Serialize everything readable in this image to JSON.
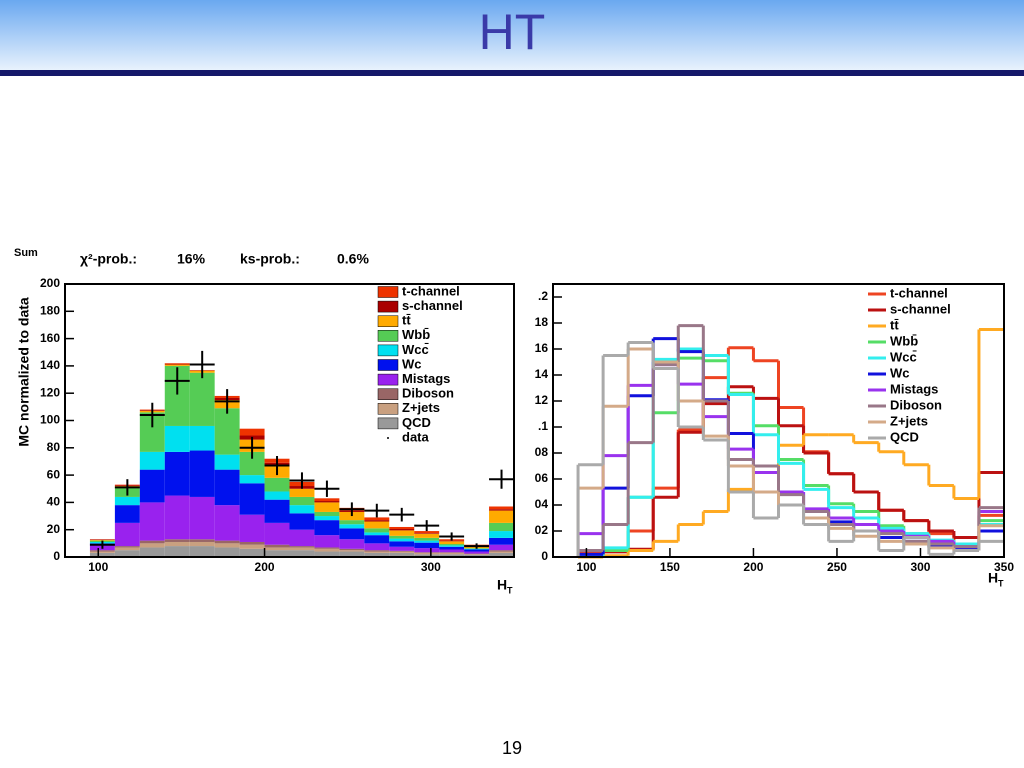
{
  "title": "HT",
  "page_number": "19",
  "chart_data": [
    {
      "type": "stacked_histogram",
      "corner_label": "Sum",
      "chi2_label": "χ²-prob.:",
      "chi2_value": "16%",
      "ks_label": "ks-prob.:",
      "ks_value": "0.6%",
      "y_label": "MC normalized to data",
      "x_label": "H",
      "x_label_sub": "T",
      "bins": [
        95,
        110,
        125,
        140,
        155,
        170,
        185,
        200,
        215,
        230,
        245,
        260,
        275,
        290,
        305,
        320,
        335,
        350
      ],
      "series": [
        {
          "name": "t-channel",
          "color": "#ee3300",
          "values": [
            0.2,
            0.5,
            0.5,
            0.5,
            0.2,
            1.5,
            5,
            3,
            3,
            2,
            2,
            2,
            1.5,
            1.5,
            1,
            0.7,
            2
          ]
        },
        {
          "name": "s-channel",
          "color": "#aa0000",
          "values": [
            0.3,
            0.5,
            0.5,
            0.5,
            0.3,
            1.5,
            3,
            2,
            2,
            1,
            1,
            1,
            1,
            0.5,
            0.5,
            0.3,
            1
          ]
        },
        {
          "name": "tt̄",
          "color": "#ffaa00",
          "values": [
            0.5,
            1,
            1,
            1,
            1.5,
            6,
            9,
            9,
            6,
            7,
            6,
            5,
            4,
            3,
            2,
            1.5,
            9
          ]
        },
        {
          "name": "Wbb̄",
          "color": "#55cc55",
          "values": [
            1,
            7,
            29,
            44,
            39,
            34,
            17,
            10,
            6,
            3,
            3,
            3,
            2,
            2,
            1,
            0.5,
            6
          ]
        },
        {
          "name": "Wcc̄",
          "color": "#00e0f0",
          "values": [
            1,
            6,
            13,
            19,
            18,
            11,
            6,
            6,
            6,
            3,
            3,
            2,
            2,
            1.5,
            1,
            0.5,
            5
          ]
        },
        {
          "name": "Wc",
          "color": "#0011ee",
          "values": [
            1,
            13,
            24,
            32,
            34,
            26,
            23,
            17,
            12,
            11,
            8,
            6,
            4,
            4,
            2,
            1.5,
            5
          ]
        },
        {
          "name": "Mistags",
          "color": "#9922ee",
          "values": [
            4,
            17,
            28,
            32,
            31,
            26,
            20,
            16,
            12,
            9,
            7,
            5,
            3,
            3,
            2,
            1.5,
            4
          ]
        },
        {
          "name": "Diboson",
          "color": "#996666",
          "values": [
            1,
            1,
            2,
            2,
            2,
            2,
            2,
            2,
            1,
            1,
            1,
            1,
            0.5,
            0.5,
            0.5,
            0.5,
            1
          ]
        },
        {
          "name": "Z+jets",
          "color": "#c9a080",
          "values": [
            1,
            2,
            3,
            3,
            3,
            3,
            3,
            2,
            2,
            2,
            1,
            1,
            1,
            1,
            1,
            0.5,
            1
          ]
        },
        {
          "name": "QCD",
          "color": "#999999",
          "values": [
            3,
            5,
            7,
            8,
            8,
            7,
            6,
            5,
            5,
            4,
            4,
            3,
            3,
            2,
            2,
            1.5,
            3
          ]
        }
      ],
      "data": {
        "name": "data",
        "color": "#000000",
        "values": [
          9,
          51,
          104,
          129,
          141,
          114,
          80,
          67,
          56,
          50,
          35,
          34,
          31,
          23,
          15,
          8,
          57
        ],
        "errors": [
          3,
          6,
          9,
          10,
          10,
          9,
          8,
          7,
          6,
          6,
          5,
          5,
          5,
          4,
          3,
          2,
          7
        ]
      },
      "xlim": [
        80,
        350
      ],
      "ylim": [
        0,
        200
      ],
      "xticks": [
        100,
        200,
        300
      ],
      "yticks": [
        0,
        20,
        40,
        60,
        80,
        100,
        120,
        140,
        160,
        180,
        200
      ]
    },
    {
      "type": "histogram",
      "x_label": "H",
      "x_label_sub": "T",
      "bins": [
        95,
        110,
        125,
        140,
        155,
        170,
        185,
        200,
        215,
        230,
        245,
        260,
        275,
        290,
        305,
        320,
        335,
        350
      ],
      "series": [
        {
          "name": "t-channel",
          "color": "#ee4422",
          "values": [
            0.003,
            0.004,
            0.02,
            0.053,
            0.098,
            0.138,
            0.161,
            0.151,
            0.115,
            0.081,
            0.064,
            0.05,
            0.036,
            0.028,
            0.018,
            0.01,
            0.032
          ]
        },
        {
          "name": "s-channel",
          "color": "#bb1111",
          "values": [
            0.002,
            0.004,
            0.006,
            0.046,
            0.096,
            0.118,
            0.131,
            0.122,
            0.101,
            0.08,
            0.064,
            0.05,
            0.036,
            0.028,
            0.02,
            0.015,
            0.065
          ]
        },
        {
          "name": "tt̄",
          "color": "#ffaa22",
          "values": [
            0,
            0.001,
            0.005,
            0.012,
            0.025,
            0.035,
            0.052,
            0.07,
            0.086,
            0.094,
            0.094,
            0.088,
            0.081,
            0.071,
            0.055,
            0.045,
            0.175
          ]
        },
        {
          "name": "Wbb̄",
          "color": "#55dd66",
          "values": [
            0.001,
            0.005,
            0.046,
            0.111,
            0.153,
            0.151,
            0.126,
            0.101,
            0.075,
            0.055,
            0.041,
            0.035,
            0.024,
            0.018,
            0.012,
            0.01,
            0.028
          ]
        },
        {
          "name": "Wcc̄",
          "color": "#33eeee",
          "values": [
            0.001,
            0.007,
            0.046,
            0.152,
            0.16,
            0.155,
            0.125,
            0.094,
            0.072,
            0.052,
            0.038,
            0.03,
            0.022,
            0.018,
            0.013,
            0.01,
            0.025
          ]
        },
        {
          "name": "Wc",
          "color": "#1111dd",
          "values": [
            0.002,
            0.053,
            0.124,
            0.168,
            0.158,
            0.121,
            0.095,
            0.07,
            0.05,
            0.035,
            0.027,
            0.02,
            0.015,
            0.012,
            0.008,
            0.007,
            0.02
          ]
        },
        {
          "name": "Mistags",
          "color": "#9933ee",
          "values": [
            0.018,
            0.078,
            0.132,
            0.148,
            0.133,
            0.108,
            0.083,
            0.065,
            0.05,
            0.037,
            0.03,
            0.025,
            0.02,
            0.016,
            0.012,
            0.008,
            0.035
          ]
        },
        {
          "name": "Diboson",
          "color": "#997788",
          "values": [
            0.005,
            0.025,
            0.088,
            0.148,
            0.178,
            0.12,
            0.075,
            0.07,
            0.048,
            0.035,
            0.025,
            0.02,
            0.018,
            0.012,
            0.01,
            0.008,
            0.038
          ]
        },
        {
          "name": "Z+jets",
          "color": "#d4aa88",
          "values": [
            0.053,
            0.116,
            0.16,
            0.15,
            0.12,
            0.093,
            0.07,
            0.05,
            0.04,
            0.03,
            0.022,
            0.016,
            0.012,
            0.01,
            0.007,
            0.005,
            0.024
          ]
        },
        {
          "name": "QCD",
          "color": "#aaaaaa",
          "values": [
            0.071,
            0.155,
            0.165,
            0.145,
            0.1,
            0.09,
            0.05,
            0.03,
            0.04,
            0.025,
            0.012,
            0.02,
            0.005,
            0.015,
            0.002,
            0.005,
            0.012
          ]
        }
      ],
      "xlim": [
        80,
        350
      ],
      "ylim": [
        0,
        0.21
      ],
      "xticks": [
        100,
        150,
        200,
        250,
        300,
        350
      ],
      "yticks": [
        0,
        {
          "value": 0.02,
          "label": "02"
        },
        {
          "value": 0.04,
          "label": "04"
        },
        {
          "value": 0.06,
          "label": "06"
        },
        {
          "value": 0.08,
          "label": "08"
        },
        {
          "value": 0.1,
          "label": ".1"
        },
        {
          "value": 0.12,
          "label": "12"
        },
        {
          "value": 0.14,
          "label": "14"
        },
        {
          "value": 0.16,
          "label": "16"
        },
        {
          "value": 0.18,
          "label": "18"
        },
        {
          "value": 0.2,
          "label": ".2"
        }
      ]
    }
  ]
}
